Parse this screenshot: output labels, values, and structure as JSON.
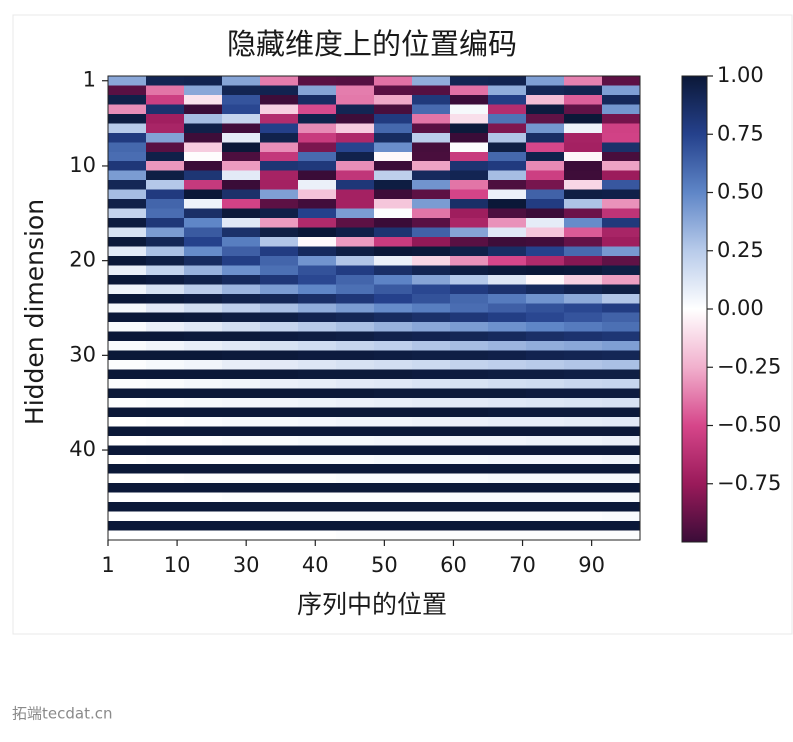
{
  "chart_data": {
    "type": "heatmap",
    "title": "隐藏维度上的位置编码",
    "xlabel": "序列中的位置",
    "ylabel": "Hidden dimension",
    "x": [
      2.75,
      8.25,
      13.75,
      19.25,
      24.75,
      30.25,
      35.75,
      41.25,
      46.75,
      52.25,
      57.75,
      63.25,
      68.75,
      74.25
    ],
    "y": [
      1,
      2,
      3,
      4,
      5,
      6,
      7,
      8,
      9,
      10,
      11,
      12,
      13,
      14,
      15,
      16,
      17,
      18,
      19,
      20,
      21,
      22,
      23,
      24,
      25,
      26,
      27,
      28,
      29,
      30,
      31,
      32,
      33,
      34,
      35,
      36,
      37,
      38,
      39,
      40,
      41,
      42,
      43,
      44,
      45,
      46,
      47,
      48,
      49
    ],
    "z": [
      [
        0.38,
        0.92,
        0.93,
        0.39,
        -0.37,
        -0.92,
        -0.93,
        -0.4,
        0.36,
        0.92,
        0.93,
        0.41,
        -0.36,
        -0.91
      ],
      [
        -0.92,
        -0.39,
        0.38,
        0.92,
        0.93,
        0.39,
        -0.37,
        -0.92,
        -0.93,
        -0.4,
        0.36,
        0.91,
        0.93,
        0.41
      ],
      [
        0.95,
        -0.54,
        -0.09,
        0.68,
        -0.99,
        0.87,
        -0.38,
        -0.27,
        0.8,
        -1.0,
        0.77,
        -0.21,
        -0.44,
        0.9
      ],
      [
        -0.33,
        0.84,
        -1.0,
        0.73,
        -0.15,
        -0.49,
        0.92,
        -0.96,
        0.6,
        0.03,
        -0.64,
        0.98,
        -0.9,
        0.44
      ],
      [
        0.97,
        -0.72,
        0.3,
        0.2,
        -0.65,
        0.94,
        -0.99,
        0.79,
        -0.39,
        -0.1,
        0.57,
        -0.9,
        1.0,
        -0.85
      ],
      [
        0.25,
        -0.69,
        0.95,
        -0.98,
        0.76,
        -0.34,
        -0.16,
        0.61,
        -0.92,
        0.99,
        -0.82,
        0.44,
        0.06,
        -0.53
      ],
      [
        0.79,
        0.4,
        -0.99,
        0.09,
        0.94,
        -0.56,
        -0.67,
        0.88,
        0.24,
        -1.0,
        0.27,
        0.87,
        -0.7,
        -0.52
      ],
      [
        0.61,
        -0.92,
        -0.16,
        1.0,
        -0.33,
        -0.83,
        0.74,
        0.47,
        -0.97,
        0.01,
        0.96,
        -0.5,
        -0.71,
        0.85
      ],
      [
        0.59,
        0.95,
        -0.01,
        -0.95,
        -0.58,
        0.6,
        0.94,
        -0.02,
        -0.96,
        -0.56,
        0.61,
        0.94,
        -0.03,
        -0.96
      ],
      [
        0.81,
        -0.31,
        -1.0,
        -0.3,
        0.82,
        0.8,
        -0.33,
        -1.0,
        -0.28,
        0.83,
        0.79,
        -0.34,
        -1.0,
        -0.28
      ],
      [
        0.42,
        0.96,
        0.82,
        0.1,
        -0.7,
        -1.0,
        -0.59,
        0.23,
        0.89,
        0.92,
        0.3,
        -0.54,
        -0.99,
        -0.74
      ],
      [
        0.91,
        0.26,
        -0.57,
        -1.0,
        -0.71,
        0.07,
        0.81,
        0.97,
        0.45,
        -0.39,
        -0.95,
        -0.84,
        -0.13,
        0.67
      ],
      [
        0.3,
        0.79,
        1.0,
        0.85,
        0.41,
        -0.19,
        -0.71,
        -0.99,
        -0.91,
        -0.51,
        0.07,
        0.63,
        0.96,
        0.95
      ],
      [
        0.95,
        0.62,
        0.06,
        -0.52,
        -0.91,
        -0.98,
        -0.71,
        -0.18,
        0.42,
        0.86,
        1.0,
        0.78,
        0.28,
        -0.32
      ],
      [
        0.21,
        0.59,
        0.86,
        0.99,
        0.95,
        0.75,
        0.42,
        0.01,
        -0.39,
        -0.73,
        -0.95,
        -1.0,
        -0.87,
        -0.6
      ],
      [
        0.98,
        0.81,
        0.5,
        0.11,
        -0.3,
        -0.66,
        -0.91,
        -1.0,
        -0.92,
        -0.68,
        -0.32,
        0.09,
        0.48,
        0.8
      ],
      [
        0.14,
        0.42,
        0.66,
        0.85,
        0.96,
        1.0,
        0.95,
        0.83,
        0.63,
        0.39,
        0.11,
        -0.18,
        -0.45,
        -0.69
      ],
      [
        0.99,
        0.91,
        0.75,
        0.53,
        0.27,
        -0.02,
        -0.3,
        -0.56,
        -0.77,
        -0.92,
        -0.99,
        -0.98,
        -0.89,
        -0.73
      ],
      [
        0.1,
        0.29,
        0.48,
        0.64,
        0.78,
        0.89,
        0.96,
        1.0,
        0.99,
        0.95,
        0.87,
        0.75,
        0.6,
        0.43
      ],
      [
        1.0,
        0.96,
        0.88,
        0.77,
        0.62,
        0.45,
        0.27,
        0.07,
        -0.13,
        -0.32,
        -0.5,
        -0.66,
        -0.8,
        -0.9
      ],
      [
        0.07,
        0.21,
        0.34,
        0.46,
        0.58,
        0.69,
        0.78,
        0.86,
        0.92,
        0.97,
        0.99,
        1.0,
        0.99,
        0.96
      ],
      [
        1.0,
        0.98,
        0.94,
        0.89,
        0.81,
        0.73,
        0.62,
        0.51,
        0.39,
        0.26,
        0.12,
        -0.02,
        -0.15,
        -0.29
      ],
      [
        0.05,
        0.14,
        0.24,
        0.33,
        0.42,
        0.5,
        0.58,
        0.66,
        0.73,
        0.79,
        0.84,
        0.89,
        0.93,
        0.96
      ],
      [
        1.0,
        0.99,
        0.97,
        0.94,
        0.91,
        0.86,
        0.81,
        0.75,
        0.69,
        0.61,
        0.54,
        0.45,
        0.37,
        0.27
      ],
      [
        0.03,
        0.1,
        0.16,
        0.23,
        0.29,
        0.36,
        0.42,
        0.48,
        0.53,
        0.59,
        0.64,
        0.69,
        0.73,
        0.78
      ],
      [
        1.0,
        1.0,
        0.99,
        0.97,
        0.96,
        0.93,
        0.91,
        0.88,
        0.85,
        0.81,
        0.77,
        0.73,
        0.68,
        0.63
      ],
      [
        0.02,
        0.07,
        0.11,
        0.16,
        0.2,
        0.25,
        0.29,
        0.34,
        0.38,
        0.42,
        0.46,
        0.5,
        0.54,
        0.58
      ],
      [
        1.0,
        1.0,
        0.99,
        0.99,
        0.98,
        0.97,
        0.96,
        0.94,
        0.93,
        0.91,
        0.89,
        0.86,
        0.84,
        0.82
      ],
      [
        0.02,
        0.05,
        0.08,
        0.11,
        0.14,
        0.17,
        0.2,
        0.23,
        0.27,
        0.3,
        0.33,
        0.36,
        0.38,
        0.41
      ],
      [
        1.0,
        1.0,
        1.0,
        0.99,
        0.99,
        0.98,
        0.98,
        0.97,
        0.96,
        0.96,
        0.95,
        0.93,
        0.92,
        0.91
      ],
      [
        0.01,
        0.03,
        0.05,
        0.08,
        0.1,
        0.12,
        0.14,
        0.16,
        0.18,
        0.21,
        0.23,
        0.25,
        0.27,
        0.29
      ],
      [
        1.0,
        1.0,
        1.0,
        1.0,
        1.0,
        0.99,
        0.99,
        0.99,
        0.98,
        0.98,
        0.97,
        0.97,
        0.96,
        0.96
      ],
      [
        0.01,
        0.02,
        0.04,
        0.05,
        0.07,
        0.08,
        0.1,
        0.11,
        0.13,
        0.14,
        0.16,
        0.17,
        0.19,
        0.2
      ],
      [
        1.0,
        1.0,
        1.0,
        1.0,
        1.0,
        1.0,
        1.0,
        0.99,
        0.99,
        0.99,
        0.99,
        0.98,
        0.98,
        0.98
      ],
      [
        0.01,
        0.02,
        0.03,
        0.04,
        0.05,
        0.06,
        0.07,
        0.08,
        0.09,
        0.1,
        0.11,
        0.12,
        0.13,
        0.14
      ],
      [
        1.0,
        1.0,
        1.0,
        1.0,
        1.0,
        1.0,
        1.0,
        1.0,
        1.0,
        1.0,
        0.99,
        0.99,
        0.99,
        0.99
      ],
      [
        0.0,
        0.01,
        0.02,
        0.03,
        0.03,
        0.04,
        0.05,
        0.05,
        0.06,
        0.07,
        0.08,
        0.08,
        0.09,
        0.1
      ],
      [
        1.0,
        1.0,
        1.0,
        1.0,
        1.0,
        1.0,
        1.0,
        1.0,
        1.0,
        1.0,
        1.0,
        1.0,
        1.0,
        1.0
      ],
      [
        0.0,
        0.01,
        0.01,
        0.02,
        0.02,
        0.03,
        0.03,
        0.04,
        0.04,
        0.05,
        0.05,
        0.06,
        0.06,
        0.07
      ],
      [
        1.0,
        1.0,
        1.0,
        1.0,
        1.0,
        1.0,
        1.0,
        1.0,
        1.0,
        1.0,
        1.0,
        1.0,
        1.0,
        1.0
      ],
      [
        0.0,
        0.01,
        0.01,
        0.01,
        0.02,
        0.02,
        0.02,
        0.03,
        0.03,
        0.03,
        0.04,
        0.04,
        0.04,
        0.05
      ],
      [
        1.0,
        1.0,
        1.0,
        1.0,
        1.0,
        1.0,
        1.0,
        1.0,
        1.0,
        1.0,
        1.0,
        1.0,
        1.0,
        1.0
      ],
      [
        0.0,
        0.0,
        0.01,
        0.01,
        0.01,
        0.01,
        0.02,
        0.02,
        0.02,
        0.02,
        0.03,
        0.03,
        0.03,
        0.03
      ],
      [
        1.0,
        1.0,
        1.0,
        1.0,
        1.0,
        1.0,
        1.0,
        1.0,
        1.0,
        1.0,
        1.0,
        1.0,
        1.0,
        1.0
      ],
      [
        0.0,
        0.0,
        0.0,
        0.01,
        0.01,
        0.01,
        0.01,
        0.01,
        0.01,
        0.02,
        0.02,
        0.02,
        0.02,
        0.02
      ],
      [
        1.0,
        1.0,
        1.0,
        1.0,
        1.0,
        1.0,
        1.0,
        1.0,
        1.0,
        1.0,
        1.0,
        1.0,
        1.0,
        1.0
      ],
      [
        0.0,
        0.0,
        0.0,
        0.0,
        0.01,
        0.01,
        0.01,
        0.01,
        0.01,
        0.01,
        0.01,
        0.01,
        0.01,
        0.02
      ],
      [
        1.0,
        1.0,
        1.0,
        1.0,
        1.0,
        1.0,
        1.0,
        1.0,
        1.0,
        1.0,
        1.0,
        1.0,
        1.0,
        1.0
      ],
      [
        0.0,
        0.0,
        0.0,
        0.0,
        0.0,
        0.0,
        0.01,
        0.01,
        0.01,
        0.01,
        0.01,
        0.01,
        0.01,
        0.01
      ]
    ],
    "xlim": [
      0,
      77
    ],
    "ylim": [
      0.5,
      49.5
    ],
    "y_inverted": true,
    "xticks": [
      {
        "value": 0,
        "label": "1"
      },
      {
        "value": 10,
        "label": "10"
      },
      {
        "value": 20,
        "label": "30"
      },
      {
        "value": 30,
        "label": "40"
      },
      {
        "value": 40,
        "label": "50"
      },
      {
        "value": 50,
        "label": "60"
      },
      {
        "value": 60,
        "label": "70"
      },
      {
        "value": 70,
        "label": "90"
      }
    ],
    "yticks": [
      1,
      10,
      20,
      30,
      40
    ],
    "colormap": [
      "#3a0c38",
      "#9a1a5a",
      "#d6468a",
      "#f1b0cd",
      "#ffffff",
      "#b8cbea",
      "#5f86c7",
      "#25418c",
      "#0b1838"
    ],
    "colorbar": {
      "clim": [
        -1,
        1
      ],
      "ticks": [
        {
          "value": 1,
          "label": "1.00"
        },
        {
          "value": 0.75,
          "label": "0.75"
        },
        {
          "value": 0.5,
          "label": "0.50"
        },
        {
          "value": 0.25,
          "label": "0.25"
        },
        {
          "value": 0,
          "label": "0.00"
        },
        {
          "value": -0.25,
          "label": "−0.25"
        },
        {
          "value": -0.5,
          "label": "−0.50"
        },
        {
          "value": -0.75,
          "label": "−0.75"
        }
      ]
    }
  },
  "watermark": "拓端tecdat.cn"
}
